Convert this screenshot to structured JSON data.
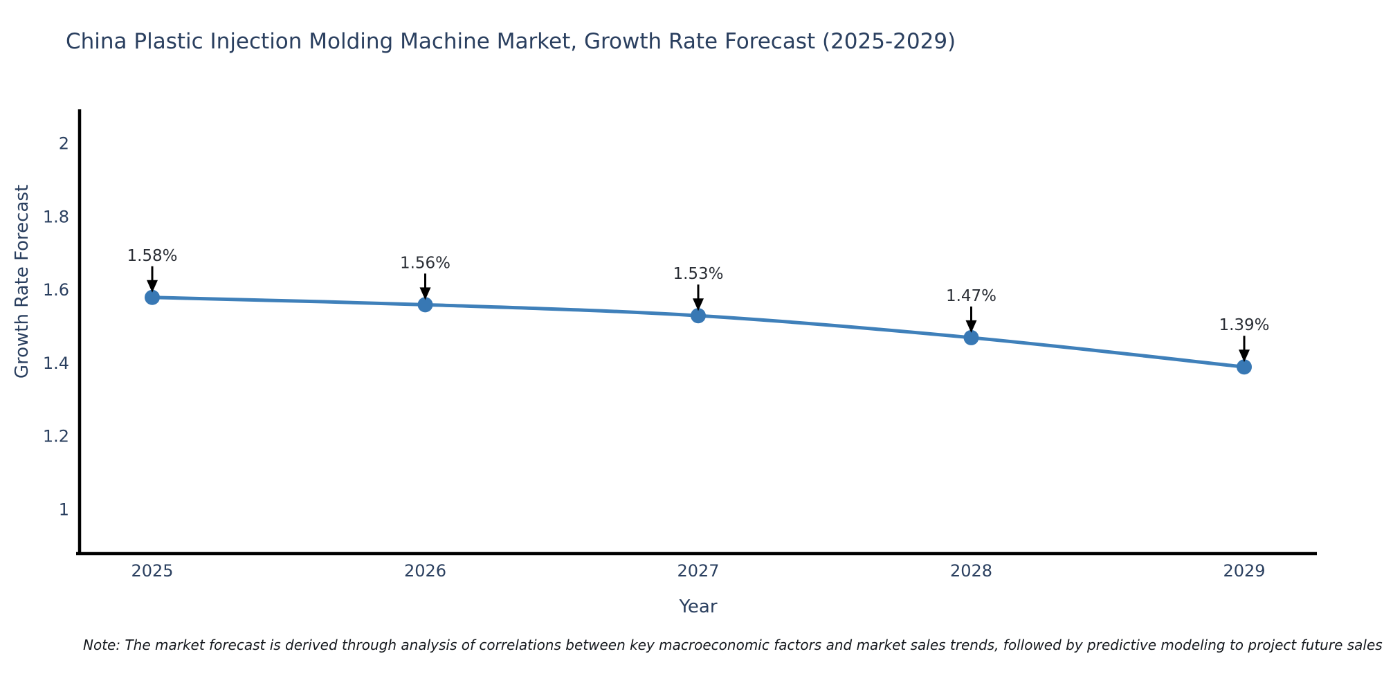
{
  "page": {
    "background": "#ffffff"
  },
  "chart_data": {
    "type": "line",
    "title": "China Plastic Injection Molding Machine Market, Growth Rate Forecast (2025-2029)",
    "xlabel": "Year",
    "ylabel": "Growth Rate Forecast",
    "x": [
      2025,
      2026,
      2027,
      2028,
      2029
    ],
    "x_tick_labels": [
      "2025",
      "2026",
      "2027",
      "2028",
      "2029"
    ],
    "series": [
      {
        "name": "Growth Rate Forecast",
        "values": [
          1.58,
          1.56,
          1.53,
          1.47,
          1.39
        ],
        "point_labels": [
          "1.58%",
          "1.56%",
          "1.53%",
          "1.47%",
          "1.39%"
        ]
      }
    ],
    "y_ticks": [
      1,
      1.2,
      1.4,
      1.6,
      1.8,
      2
    ],
    "y_tick_labels": [
      "1",
      "1.2",
      "1.4",
      "1.6",
      "1.8",
      "2"
    ],
    "ylim": [
      0.88,
      2.09
    ],
    "grid": false,
    "legend_position": "none",
    "annotations_have_arrows": true,
    "colors": {
      "line": "#3f80ba",
      "marker": "#3878b4",
      "axis": "#000000",
      "axis_text": "#2a3f5f",
      "title_text": "#2a3f5f",
      "annotation_text": "#2a2e35",
      "arrow": "#000000"
    }
  },
  "note": {
    "text": "Note: The market forecast is derived through analysis of correlations between key macroeconomic factors and market sales trends, followed by predictive modeling to project future sales"
  }
}
